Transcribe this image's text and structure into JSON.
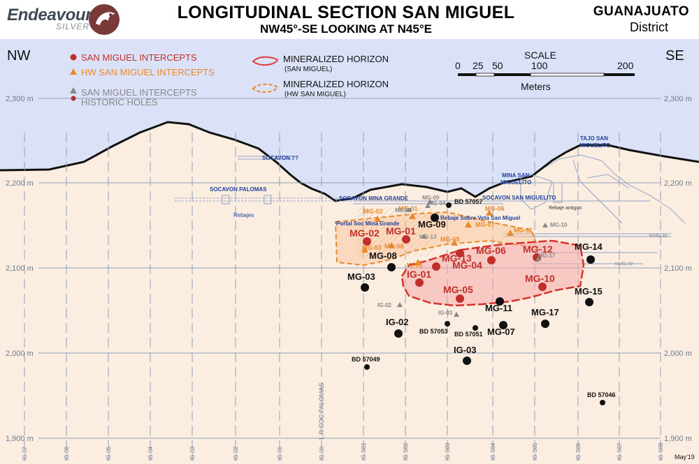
{
  "header": {
    "logo_text": "Endeavour",
    "logo_sub": "SILVER",
    "title": "LONGITUDINAL SECTION SAN MIGUEL",
    "subtitle": "NW45°-SE LOOKING AT N45°E",
    "district_line1": "GUANAJUATO",
    "district_line2": "District"
  },
  "directions": {
    "left": "NW",
    "right": "SE"
  },
  "legend": {
    "intercepts": "SAN MIGUEL INTERCEPTS",
    "hw_intercepts": "HW SAN MIGUEL INTERCEPTS",
    "historic_line1": "SAN MIGUEL INTERCEPTS",
    "historic_line2": "HISTORIC HOLES",
    "horizon_line1": "MINERALIZED HORIZON",
    "horizon_line2": "(SAN MIGUEL)",
    "hw_horizon_line1": "MINERALIZED HORIZON",
    "hw_horizon_line2": "(HW SAN MIGUEL)"
  },
  "scale_bar": {
    "title": "SCALE",
    "unit": "Meters",
    "ticks": [
      "0",
      "25",
      "50",
      "100",
      "200"
    ]
  },
  "elevations": [
    "2,300 m",
    "2,200 m",
    "2,100 m",
    "2,000 m",
    "1,900 m"
  ],
  "grid_sections": [
    "IG-07",
    "IG-06",
    "IG-05",
    "IG-04",
    "IG-03",
    "IG-02",
    "IG-01",
    "IG-00",
    "IG-S01",
    "IG-S02",
    "IG-S03",
    "IG-S04",
    "IG-S05",
    "IG-S06",
    "IG-S07",
    "IG-S08"
  ],
  "workings": [
    {
      "label": "SOCAVON ??"
    },
    {
      "label": "SOCAVON PALOMAS"
    },
    {
      "label": "Rebajes"
    },
    {
      "label": "SOCAVON MINA GRANDE"
    },
    {
      "label": "Portal Soc Mina Grande"
    },
    {
      "label": "Rebaje Sobre Veta San Miguel"
    },
    {
      "label": "SOCAVON SAN MIGUELITO"
    },
    {
      "label": "MINA SAN"
    },
    {
      "label": "MIGUELITO"
    },
    {
      "label": "TAJO SAN"
    },
    {
      "label": "MIGUELITO"
    },
    {
      "label": "Rebaje antiguo"
    },
    {
      "label": "NIVEL 82"
    },
    {
      "label": "NIVEL 92"
    },
    {
      "label": "L.R SOC PALOMAS"
    }
  ],
  "red_intercepts": [
    {
      "label": "MG-02"
    },
    {
      "label": "MG-01"
    },
    {
      "label": "MG-13"
    },
    {
      "label": "MG-06"
    },
    {
      "label": "MG-12"
    },
    {
      "label": "MG-04"
    },
    {
      "label": "IG-01"
    },
    {
      "label": "MG-10"
    },
    {
      "label": "MG-05"
    }
  ],
  "hw_intercepts": [
    {
      "label": "MG-02"
    },
    {
      "label": "MG-01"
    },
    {
      "label": "MG-06"
    },
    {
      "label": "MG-07"
    },
    {
      "label": "MG-05"
    },
    {
      "label": "MG-11"
    },
    {
      "label": "MG-03"
    },
    {
      "label": "MG-08"
    },
    {
      "label": "IG-01"
    }
  ],
  "black_holes": [
    {
      "label": "MG-09"
    },
    {
      "label": "MG-08"
    },
    {
      "label": "MG-03"
    },
    {
      "label": "MG-14"
    },
    {
      "label": "MG-15"
    },
    {
      "label": "MG-11"
    },
    {
      "label": "MG-07"
    },
    {
      "label": "MG-17"
    },
    {
      "label": "IG-02"
    },
    {
      "label": "IG-03"
    },
    {
      "label": "BD 57053"
    },
    {
      "label": "BD 57051"
    },
    {
      "label": "BD 57049"
    },
    {
      "label": "BD 57046"
    },
    {
      "label": "BD 57057"
    }
  ],
  "gray_holes": [
    {
      "label": "MG-09"
    },
    {
      "label": "MG-01"
    },
    {
      "label": "MG-04"
    },
    {
      "label": "MG-13"
    },
    {
      "label": "MG-10"
    },
    {
      "label": "MG-17"
    },
    {
      "label": "IG-02"
    },
    {
      "label": "IG-03"
    }
  ],
  "date_stamp": "May'19",
  "colors": {
    "sky": "#dbe2f7",
    "ground": "#fbeee0",
    "red_intercept": "#c0302a",
    "hw_intercept": "#e8892a",
    "historic": "#888888",
    "workings": "#1f3f9c"
  }
}
